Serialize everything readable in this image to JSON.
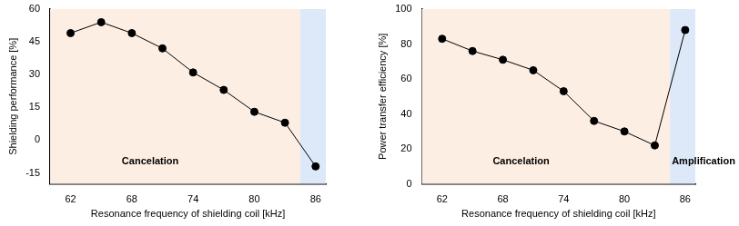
{
  "chart_data": [
    {
      "type": "line",
      "x_label": "Resonance frequency of shielding coil [kHz]",
      "y_label": "Shielding performance [%]",
      "x": [
        62,
        65,
        68,
        71,
        74,
        77,
        80,
        83,
        86
      ],
      "values": [
        49,
        54,
        49,
        42,
        31,
        23,
        13,
        8,
        -12
      ],
      "color": "#000000",
      "marker": "circle",
      "line_style": "solid",
      "xlim": [
        60,
        87
      ],
      "xticks": [
        62,
        68,
        74,
        80,
        86
      ],
      "ylim": [
        -20,
        60
      ],
      "yticks": [
        -15,
        0,
        15,
        30,
        45,
        60
      ],
      "grid": false,
      "regions": [
        {
          "from": 60,
          "to": 84.5,
          "color": "#fdeee3",
          "label": "Cancelation"
        },
        {
          "from": 84.5,
          "to": 87,
          "color": "#dde8f8"
        }
      ]
    },
    {
      "type": "line",
      "x_label": "Resonance frequency of shielding coil [kHz]",
      "y_label": "Power transfer efficiency [%]",
      "x": [
        62,
        65,
        68,
        71,
        74,
        77,
        80,
        83,
        86
      ],
      "values": [
        83,
        76,
        71,
        65,
        53,
        36,
        30,
        22,
        88
      ],
      "color": "#000000",
      "marker": "circle",
      "line_style": "solid",
      "xlim": [
        60,
        87
      ],
      "xticks": [
        62,
        68,
        74,
        80,
        86
      ],
      "ylim": [
        0,
        100
      ],
      "yticks": [
        0,
        20,
        40,
        60,
        80,
        100
      ],
      "grid": false,
      "regions": [
        {
          "from": 60,
          "to": 84.5,
          "color": "#fdeee3",
          "label": "Cancelation"
        },
        {
          "from": 84.5,
          "to": 87,
          "color": "#dde8f8",
          "label": "Amplification"
        }
      ]
    }
  ]
}
